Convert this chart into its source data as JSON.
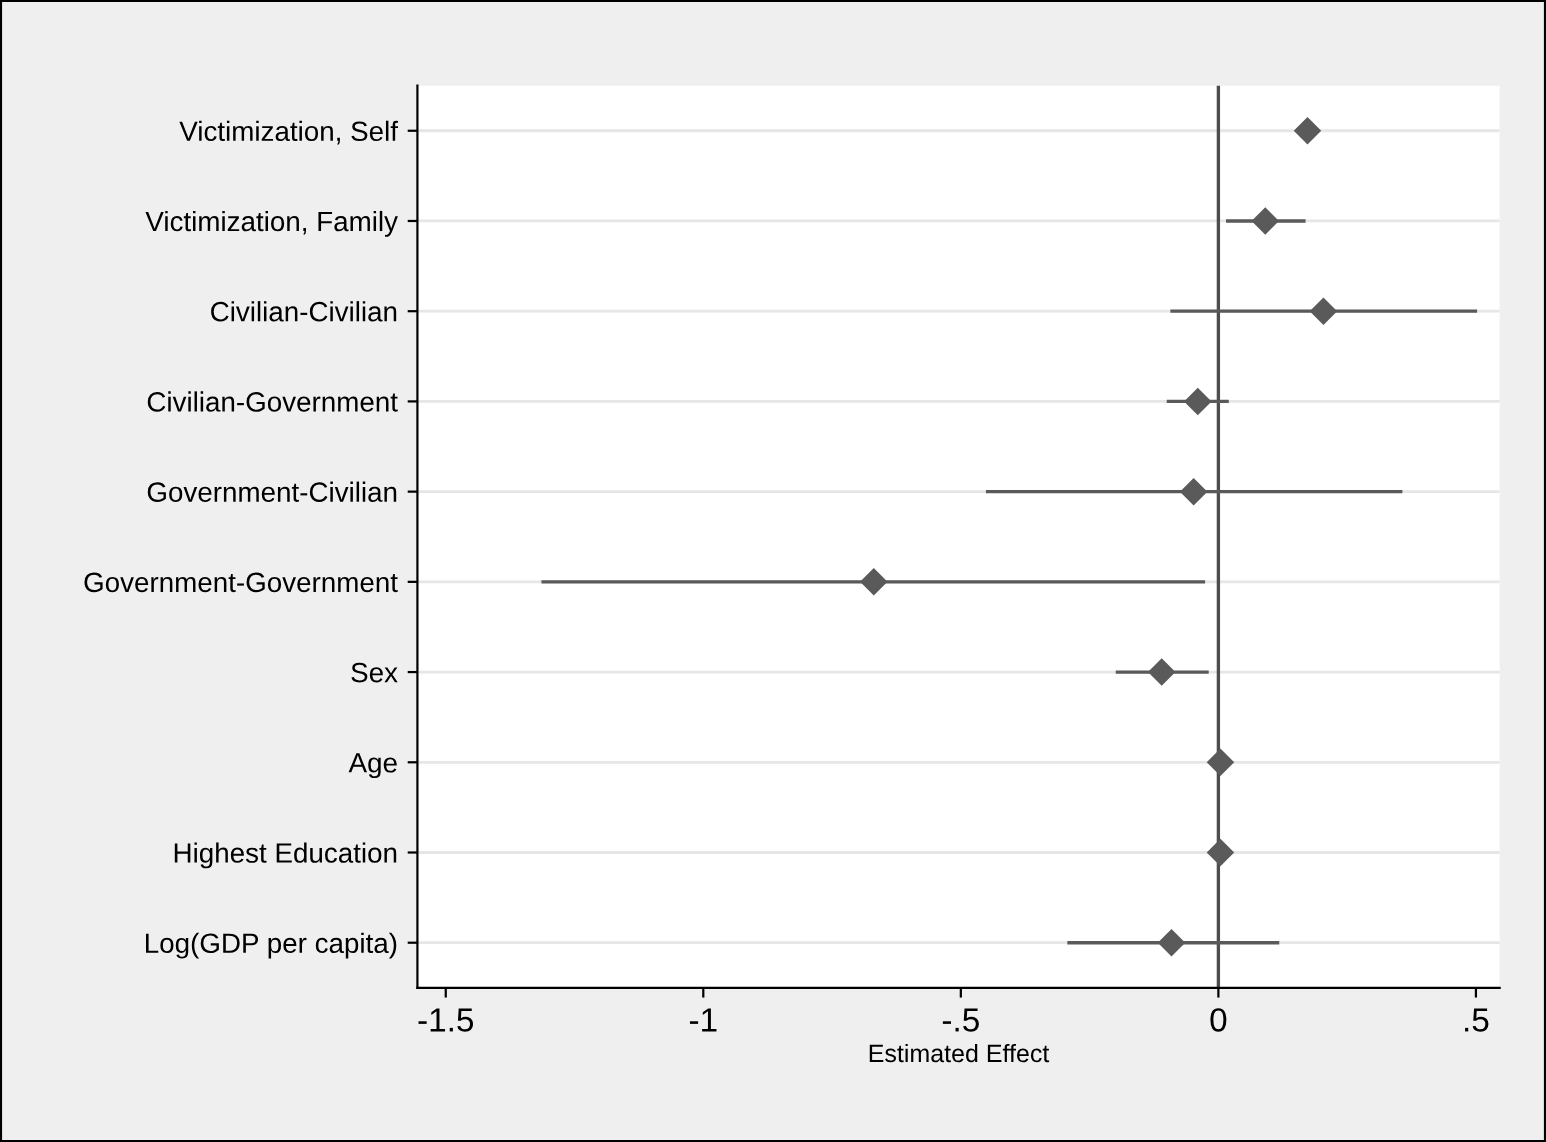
{
  "chart_data": {
    "type": "scatter",
    "orientation": "horizontal",
    "xlabel": "Estimated Effect",
    "categories": [
      "Victimization, Self",
      "Victimization, Family",
      "Civilian-Civilian",
      "Civilian-Government",
      "Government-Civilian",
      "Government-Government",
      "Sex",
      "Age",
      "Highest Education",
      "Log(GDP per capita)"
    ],
    "series": [
      {
        "color": "#5a5a5a",
        "values": [
          0.173,
          0.091,
          0.204,
          -0.04,
          -0.048,
          -0.669,
          -0.11,
          0.004,
          0.004,
          -0.091
        ],
        "errors": [
          null,
          [
            0.018,
            0.166
          ],
          [
            -0.09,
            0.499
          ],
          [
            -0.097,
            0.017
          ],
          [
            -0.448,
            0.354
          ],
          [
            -1.311,
            -0.029
          ],
          [
            -0.196,
            -0.022
          ],
          null,
          null,
          [
            -0.29,
            0.115
          ]
        ]
      }
    ],
    "marker": "diamond",
    "grid": "y",
    "xlim": [
      -1.555,
      0.546
    ],
    "xticks": [
      {
        "value": -1.5,
        "label": "-1.5"
      },
      {
        "value": -1,
        "label": "-1"
      },
      {
        "value": -0.5,
        "label": "-.5"
      },
      0,
      {
        "value": 0.5,
        "label": ".5"
      }
    ],
    "ref_lines": [
      {
        "axis": "x",
        "value": 0,
        "color": "#4d4d4d"
      }
    ]
  }
}
